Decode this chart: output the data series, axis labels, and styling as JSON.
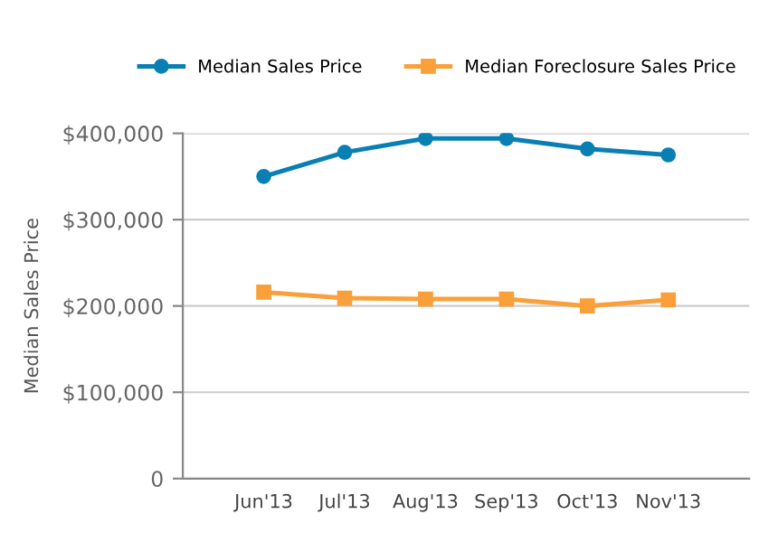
{
  "chart_data": {
    "type": "line",
    "ylabel": "Median Sales Price",
    "categories": [
      "Jun'13",
      "Jul'13",
      "Aug'13",
      "Sep'13",
      "Oct'13",
      "Nov'13"
    ],
    "series": [
      {
        "name": "Median Sales Price",
        "color": "#0a7fb4",
        "marker": "circle",
        "values": [
          350000,
          378000,
          394000,
          394000,
          382000,
          375000
        ]
      },
      {
        "name": "Median Foreclosure Sales Price",
        "color": "#f9a03a",
        "marker": "square",
        "values": [
          216000,
          209000,
          208000,
          208000,
          200000,
          207000
        ]
      }
    ],
    "ylim": [
      0,
      400000
    ],
    "yticks": [
      {
        "value": 0,
        "label": "0"
      },
      {
        "value": 100000,
        "label": "$100,000"
      },
      {
        "value": 200000,
        "label": "$200,000"
      },
      {
        "value": 300000,
        "label": "$300,000"
      },
      {
        "value": 400000,
        "label": "$400,000"
      }
    ],
    "grid": "y",
    "legend": "top",
    "line_style": "solid"
  }
}
